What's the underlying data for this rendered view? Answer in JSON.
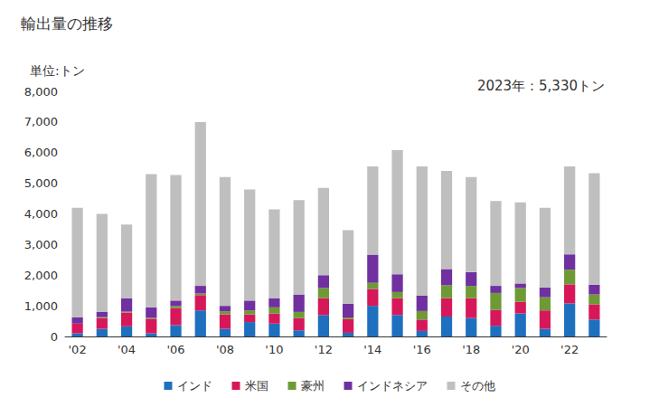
{
  "chart_data": {
    "type": "bar",
    "title": "輸出量の推移",
    "y_label": "単位:トン",
    "annotations": [
      "2023年：5,330トン"
    ],
    "categories": [
      "'02",
      null,
      "'04",
      null,
      "'06",
      null,
      "'08",
      null,
      "'10",
      null,
      "'12",
      null,
      "'14",
      null,
      "'16",
      null,
      "'18",
      null,
      "'20",
      null,
      "'22",
      null
    ],
    "series": [
      {
        "name": "インド",
        "color": "#1f6fbf",
        "values": [
          100,
          250,
          330,
          100,
          370,
          850,
          250,
          470,
          420,
          200,
          700,
          120,
          1000,
          700,
          180,
          650,
          600,
          350,
          750,
          250,
          1080,
          550
        ]
      },
      {
        "name": "米国",
        "color": "#d6185a",
        "values": [
          320,
          350,
          450,
          480,
          550,
          500,
          470,
          250,
          330,
          400,
          550,
          450,
          550,
          550,
          370,
          600,
          650,
          520,
          380,
          600,
          620,
          500
        ]
      },
      {
        "name": "豪州",
        "color": "#6e9a35",
        "values": [
          0,
          30,
          30,
          30,
          70,
          50,
          100,
          130,
          200,
          200,
          330,
          50,
          200,
          200,
          280,
          420,
          400,
          550,
          450,
          430,
          480,
          320
        ]
      },
      {
        "name": "インドネシア",
        "color": "#7030a0",
        "values": [
          200,
          170,
          440,
          340,
          180,
          250,
          180,
          320,
          300,
          570,
          420,
          450,
          920,
          580,
          500,
          530,
          450,
          230,
          150,
          320,
          500,
          320
        ]
      },
      {
        "name": "その他",
        "color": "#bfbfbf",
        "values": [
          3580,
          3200,
          2400,
          4350,
          4100,
          5350,
          4200,
          3630,
          2900,
          3080,
          2850,
          2400,
          2880,
          4050,
          4220,
          3200,
          3100,
          2770,
          2650,
          2600,
          2870,
          3640
        ]
      }
    ],
    "ylim": [
      0,
      8000
    ],
    "yticks": [
      0,
      {
        "value": 1000,
        "label": "1,000"
      },
      {
        "value": 2000,
        "label": "2,000"
      },
      {
        "value": 3000,
        "label": "3,000"
      },
      {
        "value": 4000,
        "label": "4,000"
      },
      {
        "value": 5000,
        "label": "5,000"
      },
      {
        "value": 6000,
        "label": "6,000"
      },
      {
        "value": 7000,
        "label": "7,000"
      },
      {
        "value": 8000,
        "label": "8,000"
      }
    ],
    "stacked": true,
    "grid": false,
    "legend": "bottom"
  }
}
